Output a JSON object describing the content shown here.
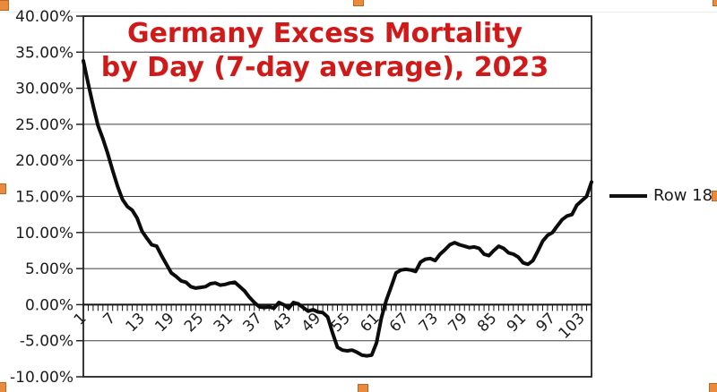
{
  "title": {
    "line1": "Germany Excess Mortality",
    "line2": "by Day (7-day average), 2023",
    "color": "#d01a1a"
  },
  "legend": {
    "label": "Row 18",
    "line_color": "#111111"
  },
  "selection": {
    "handle_color": "#e98a3c",
    "handle_border": "#bb651f"
  },
  "chart_data": {
    "type": "line",
    "title": "Germany Excess Mortality by Day (7-day average), 2023",
    "xlabel": "",
    "ylabel": "",
    "xlim": [
      1,
      105
    ],
    "ylim": [
      -10,
      40
    ],
    "grid": "horizontal",
    "legend_position": "right",
    "y_tick_labels": [
      "40.00%",
      "35.00%",
      "30.00%",
      "25.00%",
      "20.00%",
      "15.00%",
      "10.00%",
      "5.00%",
      "0.00%",
      "-5.00%",
      "-10.00%"
    ],
    "y_tick_values": [
      40,
      35,
      30,
      25,
      20,
      15,
      10,
      5,
      0,
      -5,
      -10
    ],
    "x_tick_labels": [
      "1",
      "7",
      "13",
      "19",
      "25",
      "31",
      "37",
      "43",
      "49",
      "55",
      "61",
      "67",
      "73",
      "79",
      "85",
      "91",
      "97",
      "103"
    ],
    "x_tick_values": [
      1,
      7,
      13,
      19,
      25,
      31,
      37,
      43,
      49,
      55,
      61,
      67,
      73,
      79,
      85,
      91,
      97,
      103
    ],
    "minor_x_tick_every": 1,
    "series": [
      {
        "name": "Row 18",
        "color": "#0c0c0c",
        "x_start": 1,
        "values": [
          33.8,
          30.6,
          27.6,
          24.8,
          23.0,
          20.9,
          18.6,
          16.4,
          14.6,
          13.6,
          13.1,
          12.0,
          10.2,
          9.2,
          8.3,
          8.1,
          6.8,
          5.6,
          4.4,
          3.9,
          3.3,
          3.1,
          2.5,
          2.3,
          2.4,
          2.5,
          2.9,
          3.0,
          2.7,
          2.8,
          3.0,
          3.1,
          2.5,
          1.9,
          1.0,
          0.3,
          -0.3,
          -0.4,
          -0.3,
          -0.5,
          0.3,
          0.0,
          -0.5,
          0.3,
          0.1,
          -0.4,
          -0.9,
          -0.7,
          -1.0,
          -1.1,
          -1.7,
          -3.9,
          -5.9,
          -6.3,
          -6.4,
          -6.3,
          -6.6,
          -7.0,
          -7.1,
          -7.0,
          -5.3,
          -1.8,
          0.6,
          2.5,
          4.4,
          4.8,
          4.9,
          4.8,
          4.6,
          5.9,
          6.3,
          6.4,
          6.1,
          7.0,
          7.6,
          8.3,
          8.6,
          8.3,
          8.1,
          7.9,
          8.0,
          7.8,
          7.0,
          6.8,
          7.5,
          8.1,
          7.8,
          7.2,
          7.0,
          6.6,
          5.8,
          5.6,
          6.1,
          7.4,
          8.8,
          9.6,
          10.0,
          10.9,
          11.8,
          12.3,
          12.5,
          13.8,
          14.4,
          15.0,
          17.0
        ]
      }
    ]
  }
}
